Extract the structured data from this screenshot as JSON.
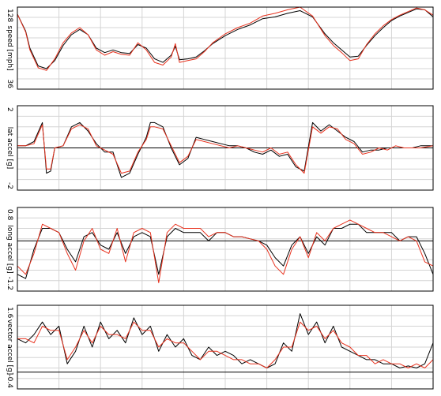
{
  "colors": {
    "series_a": "#000000",
    "series_b": "#e8321e",
    "grid": "#d4d4d4"
  },
  "chart_data": [
    {
      "type": "line",
      "ylabel": "speed [mph]",
      "ylim": [
        36,
        128
      ],
      "ytick_labels": [
        "128",
        "36"
      ],
      "xlim": [
        0,
        100
      ],
      "grid": true,
      "series": [
        {
          "color": "#000000",
          "x": [
            0,
            2,
            3,
            5,
            7,
            9,
            11,
            13,
            15,
            17,
            19,
            21,
            23,
            25,
            27,
            29,
            31,
            33,
            35,
            37,
            38,
            39,
            41,
            43,
            45,
            47,
            50,
            53,
            56,
            59,
            62,
            65,
            68,
            71,
            74,
            76,
            78,
            80,
            82,
            84,
            86,
            88,
            90,
            92,
            94,
            96,
            98,
            100
          ],
          "values": [
            120,
            101,
            82,
            62,
            59,
            68,
            85,
            97,
            103,
            97,
            82,
            77,
            80,
            77,
            76,
            86,
            82,
            70,
            66,
            74,
            84,
            69,
            70,
            72,
            79,
            87,
            96,
            103,
            108,
            115,
            117,
            121,
            124,
            117,
            98,
            88,
            80,
            72,
            73,
            85,
            96,
            105,
            113,
            118,
            122,
            126,
            125,
            117
          ]
        },
        {
          "color": "#e8321e",
          "x": [
            0,
            2,
            3,
            5,
            7,
            9,
            11,
            13,
            15,
            17,
            19,
            21,
            23,
            25,
            27,
            29,
            31,
            33,
            35,
            37,
            38,
            39,
            41,
            43,
            45,
            47,
            50,
            53,
            56,
            59,
            62,
            65,
            68,
            71,
            74,
            76,
            78,
            80,
            82,
            84,
            86,
            88,
            90,
            92,
            94,
            96,
            98,
            100
          ],
          "values": [
            120,
            100,
            80,
            60,
            57,
            70,
            88,
            99,
            105,
            97,
            80,
            74,
            78,
            75,
            74,
            88,
            80,
            66,
            63,
            72,
            87,
            66,
            68,
            70,
            78,
            88,
            98,
            105,
            110,
            118,
            121,
            125,
            128,
            118,
            96,
            85,
            77,
            68,
            70,
            86,
            98,
            107,
            114,
            119,
            123,
            127,
            125,
            119
          ]
        }
      ]
    },
    {
      "type": "line",
      "ylabel": "lat accel [g]",
      "ylim": [
        -2,
        2
      ],
      "ytick_labels": [
        "2",
        "-2"
      ],
      "xlim": [
        0,
        100
      ],
      "grid": true,
      "zero_line": true,
      "series": [
        {
          "color": "#000000",
          "x": [
            0,
            2,
            4,
            6,
            7,
            8,
            9,
            11,
            13,
            15,
            17,
            19,
            21,
            23,
            25,
            27,
            29,
            31,
            32,
            33,
            35,
            37,
            39,
            41,
            43,
            45,
            47,
            49,
            51,
            53,
            55,
            57,
            59,
            61,
            63,
            65,
            67,
            69,
            71,
            73,
            75,
            77,
            79,
            81,
            83,
            85,
            87,
            89,
            91,
            93,
            95,
            97,
            100
          ],
          "values": [
            0.1,
            0.1,
            0.3,
            1.2,
            -1.2,
            -1.1,
            0,
            0.1,
            1,
            1.2,
            0.8,
            0.2,
            -0.2,
            -0.2,
            -1.4,
            -1.2,
            -0.3,
            0.5,
            1.2,
            1.2,
            1,
            0,
            -0.8,
            -0.5,
            0.5,
            0.4,
            0.3,
            0.2,
            0.1,
            0.1,
            0,
            -0.2,
            -0.3,
            -0.1,
            -0.4,
            -0.3,
            -0.9,
            -1.1,
            1.2,
            0.8,
            1.1,
            0.8,
            0.5,
            0.3,
            -0.2,
            -0.1,
            -0.1,
            0,
            0,
            0,
            0,
            0.1,
            0.1
          ]
        },
        {
          "color": "#e8321e",
          "x": [
            0,
            2,
            4,
            6,
            7,
            8,
            9,
            11,
            13,
            15,
            17,
            19,
            21,
            23,
            25,
            27,
            29,
            31,
            32,
            33,
            35,
            37,
            39,
            41,
            43,
            45,
            47,
            49,
            51,
            53,
            55,
            57,
            59,
            61,
            63,
            65,
            67,
            69,
            71,
            73,
            75,
            77,
            79,
            81,
            83,
            85,
            87,
            89,
            91,
            93,
            95,
            97,
            100
          ],
          "values": [
            0.1,
            0.1,
            0.2,
            1.1,
            -1,
            -1,
            0,
            0.1,
            0.9,
            1.1,
            0.9,
            0.1,
            -0.1,
            -0.3,
            -1.2,
            -1.1,
            -0.2,
            0.4,
            1,
            1,
            0.9,
            0.1,
            -0.7,
            -0.4,
            0.4,
            0.3,
            0.2,
            0.1,
            0,
            0.1,
            0,
            -0.1,
            -0.2,
            0,
            -0.3,
            -0.2,
            -0.8,
            -1.2,
            1,
            0.7,
            1,
            0.9,
            0.4,
            0.2,
            -0.3,
            -0.2,
            0,
            -0.1,
            0.1,
            0,
            0,
            0,
            0.1
          ]
        }
      ]
    },
    {
      "type": "line",
      "ylabel": "long accel [g]",
      "ylim": [
        -1.2,
        0.8
      ],
      "ytick_labels": [
        "0.8",
        "-1.2"
      ],
      "xlim": [
        0,
        100
      ],
      "grid": true,
      "zero_line": true,
      "series": [
        {
          "color": "#000000",
          "x": [
            0,
            2,
            4,
            6,
            8,
            10,
            12,
            14,
            16,
            18,
            20,
            22,
            24,
            26,
            28,
            30,
            32,
            34,
            36,
            38,
            40,
            42,
            44,
            46,
            48,
            50,
            52,
            54,
            56,
            58,
            60,
            62,
            64,
            66,
            68,
            70,
            72,
            74,
            76,
            78,
            80,
            82,
            84,
            86,
            88,
            90,
            92,
            94,
            96,
            98,
            100
          ],
          "values": [
            -0.8,
            -0.9,
            -0.2,
            0.3,
            0.3,
            0.2,
            -0.2,
            -0.5,
            0.1,
            0.2,
            -0.1,
            -0.2,
            0.2,
            -0.3,
            0.1,
            0.2,
            0.1,
            -0.8,
            0.1,
            0.3,
            0.2,
            0.2,
            0.2,
            0,
            0.2,
            0.2,
            0.1,
            0.1,
            0.05,
            0,
            -0.1,
            -0.4,
            -0.6,
            -0.1,
            0.1,
            -0.3,
            0.1,
            -0.1,
            0.3,
            0.3,
            0.4,
            0.4,
            0.2,
            0.2,
            0.2,
            0.2,
            0,
            0.1,
            0.1,
            -0.3,
            -0.8
          ]
        },
        {
          "color": "#e8321e",
          "x": [
            0,
            2,
            4,
            6,
            8,
            10,
            12,
            14,
            16,
            18,
            20,
            22,
            24,
            26,
            28,
            30,
            32,
            34,
            36,
            38,
            40,
            42,
            44,
            46,
            48,
            50,
            52,
            54,
            56,
            58,
            60,
            62,
            64,
            66,
            68,
            70,
            72,
            74,
            76,
            78,
            80,
            82,
            84,
            86,
            88,
            90,
            92,
            94,
            96,
            98,
            100
          ],
          "values": [
            -0.6,
            -0.8,
            -0.3,
            0.4,
            0.3,
            0.2,
            -0.3,
            -0.7,
            0,
            0.3,
            -0.2,
            -0.3,
            0.3,
            -0.5,
            0.2,
            0.3,
            0.2,
            -1,
            0.2,
            0.4,
            0.3,
            0.3,
            0.3,
            0.1,
            0.2,
            0.2,
            0.1,
            0.1,
            0.05,
            0,
            -0.2,
            -0.6,
            -0.8,
            -0.2,
            0.1,
            -0.4,
            0.2,
            0,
            0.3,
            0.4,
            0.5,
            0.4,
            0.3,
            0.2,
            0.2,
            0.1,
            0,
            0.1,
            0,
            -0.5,
            -0.6
          ]
        }
      ]
    },
    {
      "type": "line",
      "ylabel": "vector accel [g]",
      "ylim": [
        -0.4,
        1.6
      ],
      "ytick_labels": [
        "1.6",
        "-0.4"
      ],
      "xlim": [
        0,
        100
      ],
      "grid": true,
      "zero_line": true,
      "series": [
        {
          "color": "#000000",
          "x": [
            0,
            2,
            4,
            6,
            8,
            10,
            12,
            14,
            16,
            18,
            20,
            22,
            24,
            26,
            28,
            30,
            32,
            34,
            36,
            38,
            40,
            42,
            44,
            46,
            48,
            50,
            52,
            54,
            56,
            58,
            60,
            62,
            64,
            66,
            68,
            70,
            72,
            74,
            76,
            78,
            80,
            82,
            84,
            86,
            88,
            90,
            92,
            94,
            96,
            98,
            100
          ],
          "values": [
            0.8,
            0.7,
            0.9,
            1.2,
            0.9,
            1.1,
            0.2,
            0.5,
            1.1,
            0.6,
            1.2,
            0.8,
            1,
            0.7,
            1.3,
            0.9,
            1.1,
            0.5,
            0.9,
            0.6,
            0.8,
            0.4,
            0.3,
            0.6,
            0.4,
            0.5,
            0.4,
            0.2,
            0.3,
            0.2,
            0.1,
            0.2,
            0.7,
            0.5,
            1.4,
            0.9,
            1.2,
            0.7,
            1.1,
            0.6,
            0.5,
            0.4,
            0.3,
            0.3,
            0.2,
            0.2,
            0.1,
            0.15,
            0.1,
            0.2,
            0.7
          ]
        },
        {
          "color": "#e8321e",
          "x": [
            0,
            2,
            4,
            6,
            8,
            10,
            12,
            14,
            16,
            18,
            20,
            22,
            24,
            26,
            28,
            30,
            32,
            34,
            36,
            38,
            40,
            42,
            44,
            46,
            48,
            50,
            52,
            54,
            56,
            58,
            60,
            62,
            64,
            66,
            68,
            70,
            72,
            74,
            76,
            78,
            80,
            82,
            84,
            86,
            88,
            90,
            92,
            94,
            96,
            98,
            100
          ],
          "values": [
            0.8,
            0.8,
            0.7,
            1.1,
            1,
            1,
            0.3,
            0.6,
            1,
            0.7,
            1.1,
            0.9,
            0.9,
            0.8,
            1.2,
            1,
            1,
            0.6,
            0.8,
            0.7,
            0.7,
            0.5,
            0.3,
            0.5,
            0.5,
            0.4,
            0.3,
            0.3,
            0.2,
            0.2,
            0.1,
            0.3,
            0.6,
            0.6,
            1.2,
            1,
            1.1,
            0.8,
            1,
            0.7,
            0.6,
            0.4,
            0.4,
            0.2,
            0.3,
            0.2,
            0.2,
            0.1,
            0.2,
            0.1,
            0.3
          ]
        }
      ]
    }
  ]
}
